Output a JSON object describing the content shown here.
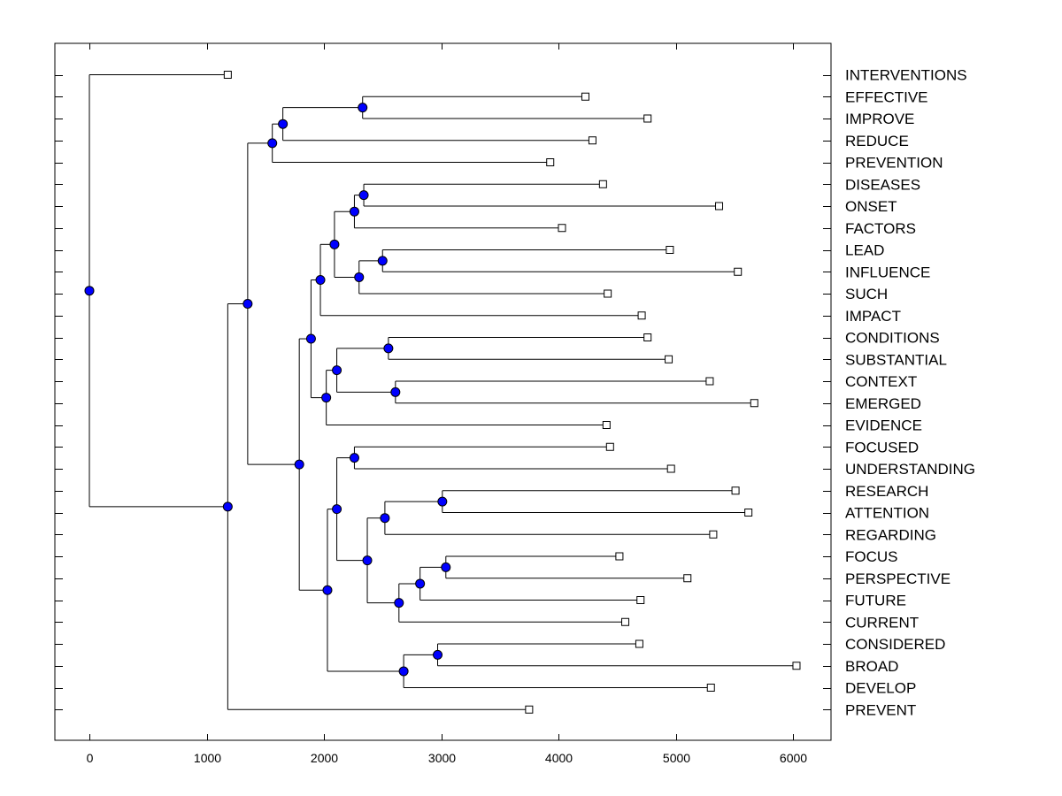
{
  "chart_data": {
    "type": "dendrogram",
    "title": "",
    "xlabel": "",
    "ylabel": "",
    "xlim": [
      -300,
      6350
    ],
    "xticks": [
      0,
      1000,
      2000,
      3000,
      4000,
      5000,
      6000
    ],
    "tick_labels": [
      "0",
      "1000",
      "2000",
      "3000",
      "4000",
      "5000",
      "6000"
    ],
    "grid": false,
    "leaves": [
      {
        "name": "INTERVENTIONS",
        "value": 1180
      },
      {
        "name": "EFFECTIVE",
        "value": 4230
      },
      {
        "name": "IMPROVE",
        "value": 4760
      },
      {
        "name": "REDUCE",
        "value": 4290
      },
      {
        "name": "PREVENTION",
        "value": 3930
      },
      {
        "name": "DISEASES",
        "value": 4380
      },
      {
        "name": "ONSET",
        "value": 5370
      },
      {
        "name": "FACTORS",
        "value": 4030
      },
      {
        "name": "LEAD",
        "value": 4950
      },
      {
        "name": "INFLUENCE",
        "value": 5530
      },
      {
        "name": "SUCH",
        "value": 4420
      },
      {
        "name": "IMPACT",
        "value": 4710
      },
      {
        "name": "CONDITIONS",
        "value": 4760
      },
      {
        "name": "SUBSTANTIAL",
        "value": 4940
      },
      {
        "name": "CONTEXT",
        "value": 5290
      },
      {
        "name": "EMERGED",
        "value": 5670
      },
      {
        "name": "EVIDENCE",
        "value": 4410
      },
      {
        "name": "FOCUSED",
        "value": 4440
      },
      {
        "name": "UNDERSTANDING",
        "value": 4960
      },
      {
        "name": "RESEARCH",
        "value": 5510
      },
      {
        "name": "ATTENTION",
        "value": 5620
      },
      {
        "name": "REGARDING",
        "value": 5320
      },
      {
        "name": "FOCUS",
        "value": 4520
      },
      {
        "name": "PERSPECTIVE",
        "value": 5100
      },
      {
        "name": "FUTURE",
        "value": 4700
      },
      {
        "name": "CURRENT",
        "value": 4570
      },
      {
        "name": "CONSIDERED",
        "value": 4690
      },
      {
        "name": "BROAD",
        "value": 6030
      },
      {
        "name": "DEVELOP",
        "value": 5300
      },
      {
        "name": "PREVENT",
        "value": 3750
      }
    ],
    "merges": [
      {
        "a": "L1",
        "b": "L2",
        "value": 2330
      },
      {
        "a": "N0",
        "b": "L3",
        "value": 1650
      },
      {
        "a": "N1",
        "b": "L4",
        "value": 1560
      },
      {
        "a": "L5",
        "b": "L6",
        "value": 2340
      },
      {
        "a": "N3",
        "b": "L7",
        "value": 2260
      },
      {
        "a": "L8",
        "b": "L9",
        "value": 2500
      },
      {
        "a": "N5",
        "b": "L10",
        "value": 2300
      },
      {
        "a": "N4",
        "b": "N6",
        "value": 2090
      },
      {
        "a": "N7",
        "b": "L11",
        "value": 1970
      },
      {
        "a": "L12",
        "b": "L13",
        "value": 2550
      },
      {
        "a": "L14",
        "b": "L15",
        "value": 2610
      },
      {
        "a": "N9",
        "b": "N10",
        "value": 2110
      },
      {
        "a": "N11",
        "b": "L16",
        "value": 2020
      },
      {
        "a": "N8",
        "b": "N12",
        "value": 1890
      },
      {
        "a": "L17",
        "b": "L18",
        "value": 2260
      },
      {
        "a": "L19",
        "b": "L20",
        "value": 3010
      },
      {
        "a": "N15",
        "b": "L21",
        "value": 2520
      },
      {
        "a": "L22",
        "b": "L23",
        "value": 3040
      },
      {
        "a": "N17",
        "b": "L24",
        "value": 2820
      },
      {
        "a": "N18",
        "b": "L25",
        "value": 2640
      },
      {
        "a": "N16",
        "b": "N19",
        "value": 2370
      },
      {
        "a": "N14",
        "b": "N20",
        "value": 2110
      },
      {
        "a": "L26",
        "b": "L27",
        "value": 2970
      },
      {
        "a": "N22",
        "b": "L28",
        "value": 2680
      },
      {
        "a": "N21",
        "b": "N23",
        "value": 2030
      },
      {
        "a": "N13",
        "b": "N24",
        "value": 1790
      },
      {
        "a": "N2",
        "b": "N25",
        "value": 1350
      },
      {
        "a": "N26",
        "b": "L29",
        "value": 1180
      },
      {
        "a": "L0",
        "b": "N27",
        "value": 0
      }
    ]
  }
}
